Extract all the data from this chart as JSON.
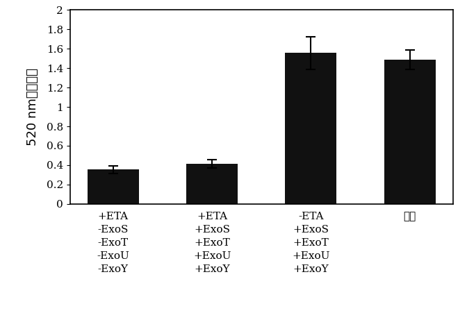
{
  "categories_line1": [
    "+ETA",
    "+ETA",
    "-ETA",
    "空白"
  ],
  "categories_lines": [
    [
      "+ETA",
      "-ExoS",
      "-ExoT",
      "-ExoU",
      "-ExoY"
    ],
    [
      "+ETA",
      "+ExoS",
      "+ExoT",
      "+ExoU",
      "+ExoY"
    ],
    [
      "-ETA",
      "+ExoS",
      "+ExoT",
      "+ExoU",
      "+ExoY"
    ],
    [
      "空白"
    ]
  ],
  "values": [
    0.355,
    0.415,
    1.555,
    1.49
  ],
  "errors": [
    0.04,
    0.045,
    0.17,
    0.1
  ],
  "bar_color": "#111111",
  "bar_width": 0.52,
  "ylabel": "520 nm的吸收值",
  "ylim": [
    0,
    2.0
  ],
  "yticks": [
    0,
    0.2,
    0.4,
    0.6,
    0.8,
    1.0,
    1.2,
    1.4,
    1.6,
    1.8,
    2.0
  ],
  "ytick_labels": [
    "0",
    "0.2",
    "0.4",
    "0.6",
    "0.8",
    "1",
    "1.2",
    "1.4",
    "1.6",
    "1.8",
    "2"
  ],
  "background_color": "#ffffff",
  "figsize": [
    6.72,
    4.74
  ],
  "dpi": 100
}
